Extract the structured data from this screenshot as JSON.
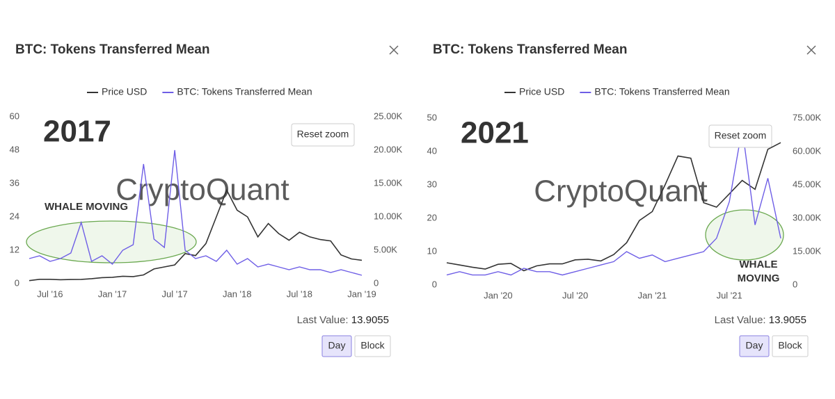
{
  "chart_data": [
    {
      "type": "line",
      "title": "BTC: Tokens Transferred Mean",
      "watermark": "2017",
      "brand": "CryptoQuant",
      "annotation": [
        "WHALE MOVING"
      ],
      "reset_button": "Reset zoom",
      "last_value_label": "Last Value:",
      "last_value": "13.9055",
      "buttons": [
        "Day",
        "Block"
      ],
      "x": [
        "2016-05",
        "2016-06",
        "2016-07",
        "2016-08",
        "2016-09",
        "2016-10",
        "2016-11",
        "2016-12",
        "2017-01",
        "2017-02",
        "2017-03",
        "2017-04",
        "2017-05",
        "2017-06",
        "2017-07",
        "2017-08",
        "2017-09",
        "2017-10",
        "2017-11",
        "2017-12",
        "2018-01",
        "2018-02",
        "2018-03",
        "2018-04",
        "2018-05",
        "2018-06",
        "2018-07",
        "2018-08",
        "2018-09",
        "2018-10",
        "2018-11",
        "2018-12",
        "2019-01"
      ],
      "xlim": [
        "2016-05",
        "2019-01"
      ],
      "xticks": [
        {
          "value": "2016-07",
          "label": "Jul '16"
        },
        {
          "value": "2017-01",
          "label": "Jan '17"
        },
        {
          "value": "2017-07",
          "label": "Jul '17"
        },
        {
          "value": "2018-01",
          "label": "Jan '18"
        },
        {
          "value": "2018-07",
          "label": "Jul '18"
        },
        {
          "value": "2019-01",
          "label": "Jan '19"
        }
      ],
      "ylim": [
        0,
        60
      ],
      "yticks": [
        0,
        12,
        24,
        36,
        48,
        60
      ],
      "y2lim": [
        0,
        25000
      ],
      "y2ticks": [
        0,
        {
          "value": 5000,
          "label": "5.00K"
        },
        {
          "value": 10000,
          "label": "10.00K"
        },
        {
          "value": 15000,
          "label": "15.00K"
        },
        {
          "value": 20000,
          "label": "20.00K"
        },
        {
          "value": 25000,
          "label": "25.00K"
        }
      ],
      "series": [
        {
          "name": "Price USD",
          "color": "#333333",
          "axis": "y2",
          "values": [
            450,
            650,
            650,
            580,
            610,
            640,
            740,
            900,
            950,
            1100,
            1050,
            1300,
            2200,
            2500,
            2800,
            4500,
            4200,
            6000,
            10000,
            14000,
            11000,
            10000,
            7000,
            9000,
            7500,
            6500,
            7700,
            7000,
            6600,
            6400,
            4300,
            3700,
            3500
          ]
        },
        {
          "name": "BTC: Tokens Transferred Mean",
          "color": "#6e5ee6",
          "values": [
            9,
            10,
            8,
            9,
            11,
            22,
            8,
            10,
            7,
            12,
            14,
            43,
            16,
            13,
            48,
            12,
            9,
            10,
            8,
            12,
            7,
            9,
            6,
            7,
            6,
            5,
            6,
            5,
            5,
            4,
            5,
            4,
            3
          ]
        }
      ]
    },
    {
      "type": "line",
      "title": "BTC: Tokens Transferred Mean",
      "watermark": "2021",
      "brand": "CryptoQuant",
      "annotation": [
        "WHALE",
        "MOVING"
      ],
      "reset_button": "Reset zoom",
      "last_value_label": "Last Value:",
      "last_value": "13.9055",
      "buttons": [
        "Day",
        "Block"
      ],
      "x": [
        "2019-09",
        "2019-10",
        "2019-11",
        "2019-12",
        "2020-01",
        "2020-02",
        "2020-03",
        "2020-04",
        "2020-05",
        "2020-06",
        "2020-07",
        "2020-08",
        "2020-09",
        "2020-10",
        "2020-11",
        "2020-12",
        "2021-01",
        "2021-02",
        "2021-03",
        "2021-04",
        "2021-05",
        "2021-06",
        "2021-07",
        "2021-08",
        "2021-09",
        "2021-10",
        "2021-11"
      ],
      "xlim": [
        "2019-09",
        "2021-11"
      ],
      "xticks": [
        {
          "value": "2020-01",
          "label": "Jan '20"
        },
        {
          "value": "2020-07",
          "label": "Jul '20"
        },
        {
          "value": "2021-01",
          "label": "Jan '21"
        },
        {
          "value": "2021-07",
          "label": "Jul '21"
        }
      ],
      "ylim": [
        0,
        50
      ],
      "yticks": [
        0,
        10,
        20,
        30,
        40,
        50
      ],
      "y2lim": [
        0,
        75000
      ],
      "y2ticks": [
        0,
        {
          "value": 15000,
          "label": "15.00K"
        },
        {
          "value": 30000,
          "label": "30.00K"
        },
        {
          "value": 45000,
          "label": "45.00K"
        },
        {
          "value": 60000,
          "label": "60.00K"
        },
        {
          "value": 75000,
          "label": "75.00K"
        }
      ],
      "series": [
        {
          "name": "Price USD",
          "color": "#333333",
          "axis": "y2",
          "values": [
            10000,
            9000,
            8000,
            7200,
            9300,
            9700,
            6400,
            8600,
            9500,
            9500,
            11300,
            11600,
            10800,
            13700,
            19000,
            29000,
            33000,
            45000,
            58000,
            57000,
            37000,
            35000,
            41000,
            47000,
            43000,
            61000,
            64000
          ]
        },
        {
          "name": "BTC: Tokens Transferred Mean",
          "color": "#6e5ee6",
          "values": [
            3,
            4,
            3,
            3,
            4,
            3,
            5,
            4,
            4,
            3,
            4,
            5,
            6,
            7,
            10,
            8,
            9,
            7,
            8,
            9,
            10,
            14,
            25,
            47,
            18,
            32,
            14
          ]
        }
      ]
    }
  ]
}
